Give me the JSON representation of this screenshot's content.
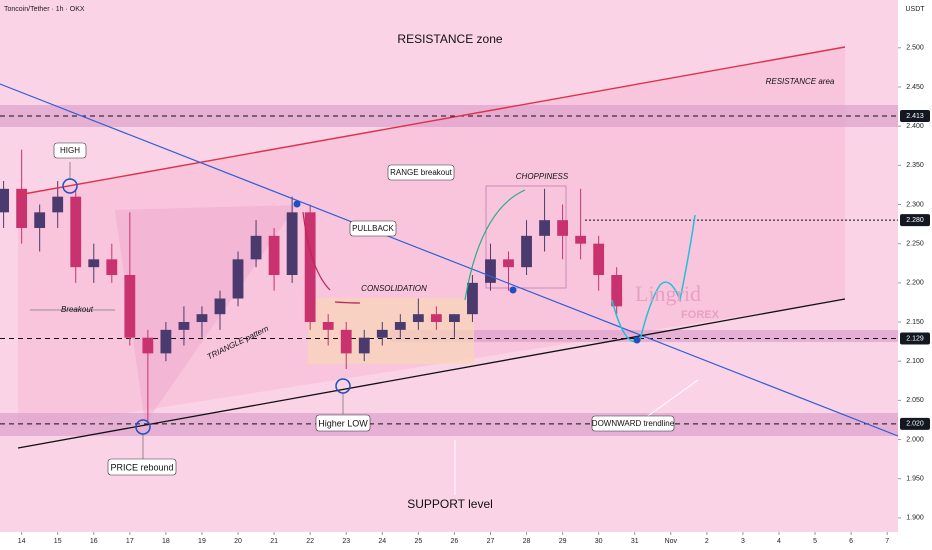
{
  "chart_data": {
    "type": "candlestick",
    "title": "Toncoin/Tether · 1h · OKX",
    "y_axis_label": "USDT",
    "x": [
      13.5,
      14,
      14.5,
      15,
      15.5,
      16,
      16.5,
      17,
      17.5,
      18,
      18.5,
      19,
      19.5,
      20,
      20.5,
      21,
      21.5,
      22,
      22.5,
      23,
      23.5,
      24,
      24.5,
      25,
      25.5,
      26,
      26.5,
      27,
      27.5,
      28,
      28.5,
      29,
      29.5,
      30,
      30.5
    ],
    "open": [
      2.29,
      2.32,
      2.27,
      2.29,
      2.31,
      2.22,
      2.23,
      2.21,
      2.13,
      2.11,
      2.14,
      2.15,
      2.16,
      2.18,
      2.23,
      2.26,
      2.21,
      2.29,
      2.15,
      2.14,
      2.11,
      2.13,
      2.14,
      2.15,
      2.16,
      2.15,
      2.16,
      2.2,
      2.23,
      2.22,
      2.26,
      2.28,
      2.26,
      2.25,
      2.21
    ],
    "high": [
      2.33,
      2.37,
      2.3,
      2.33,
      2.32,
      2.25,
      2.25,
      2.29,
      2.14,
      2.15,
      2.17,
      2.17,
      2.19,
      2.24,
      2.28,
      2.27,
      2.31,
      2.3,
      2.16,
      2.15,
      2.14,
      2.15,
      2.16,
      2.18,
      2.17,
      2.16,
      2.21,
      2.25,
      2.24,
      2.28,
      2.32,
      2.3,
      2.32,
      2.26,
      2.22
    ],
    "low": [
      2.27,
      2.25,
      2.24,
      2.27,
      2.2,
      2.2,
      2.2,
      2.12,
      2.02,
      2.1,
      2.12,
      2.13,
      2.14,
      2.17,
      2.22,
      2.19,
      2.2,
      2.14,
      2.12,
      2.09,
      2.1,
      2.12,
      2.13,
      2.14,
      2.14,
      2.13,
      2.15,
      2.19,
      2.19,
      2.21,
      2.24,
      2.23,
      2.23,
      2.19,
      2.16
    ],
    "close": [
      2.32,
      2.27,
      2.29,
      2.31,
      2.22,
      2.23,
      2.21,
      2.13,
      2.11,
      2.14,
      2.15,
      2.16,
      2.18,
      2.23,
      2.26,
      2.21,
      2.29,
      2.15,
      2.14,
      2.11,
      2.13,
      2.14,
      2.15,
      2.16,
      2.15,
      2.16,
      2.2,
      2.23,
      2.22,
      2.26,
      2.28,
      2.26,
      2.25,
      2.21,
      2.17
    ],
    "up_color": "#4b3a6e",
    "down_color": "#c8326e",
    "xlim": [
      13.4,
      38.3
    ],
    "xticks": [
      14,
      15,
      16,
      17,
      18,
      19,
      20,
      21,
      22,
      23,
      24,
      25,
      26,
      27,
      28,
      29,
      30,
      31,
      {
        "value": 32,
        "label": "Nov"
      },
      {
        "value": 33,
        "label": "2"
      },
      {
        "value": 34,
        "label": "3"
      },
      {
        "value": 35,
        "label": "4"
      },
      {
        "value": 36,
        "label": "5"
      },
      {
        "value": 37,
        "label": "6"
      },
      {
        "value": 38,
        "label": "7"
      }
    ],
    "ylim": [
      1.882,
      2.561
    ],
    "yticks": [
      {
        "value": 1.9,
        "label": "1.900"
      },
      {
        "value": 1.95,
        "label": "1.950"
      },
      {
        "value": 2,
        "label": "2.000"
      },
      {
        "value": 2.05,
        "label": "2.050"
      },
      {
        "value": 2.1,
        "label": "2.100"
      },
      {
        "value": 2.15,
        "label": "2.150"
      },
      {
        "value": 2.2,
        "label": "2.200"
      },
      {
        "value": 2.25,
        "label": "2.250"
      },
      {
        "value": 2.3,
        "label": "2.300"
      },
      {
        "value": 2.35,
        "label": "2.350"
      },
      {
        "value": 2.4,
        "label": "2.400"
      },
      {
        "value": 2.45,
        "label": "2.450"
      },
      {
        "value": 2.5,
        "label": "2.500"
      }
    ],
    "levels": [
      {
        "value": 2.413,
        "label": "2.413"
      },
      {
        "value": 2.28,
        "label": "2.280"
      },
      {
        "value": 2.129,
        "label": "2.129"
      },
      {
        "value": 2.02,
        "label": "2.020"
      }
    ],
    "annotations": [
      "RESISTANCE zone",
      "RESISTANCE area",
      "HIGH",
      "Breakout",
      "TRIANGLE pattern",
      "PULLBACK",
      "CONSOLIDATION",
      "RANGE breakout",
      "CHOPPINESS",
      "Higher LOW",
      "PRICE rebound",
      "DOWNWARD trendline",
      "SUPPORT level",
      "Lingrid",
      "FOREX"
    ]
  }
}
